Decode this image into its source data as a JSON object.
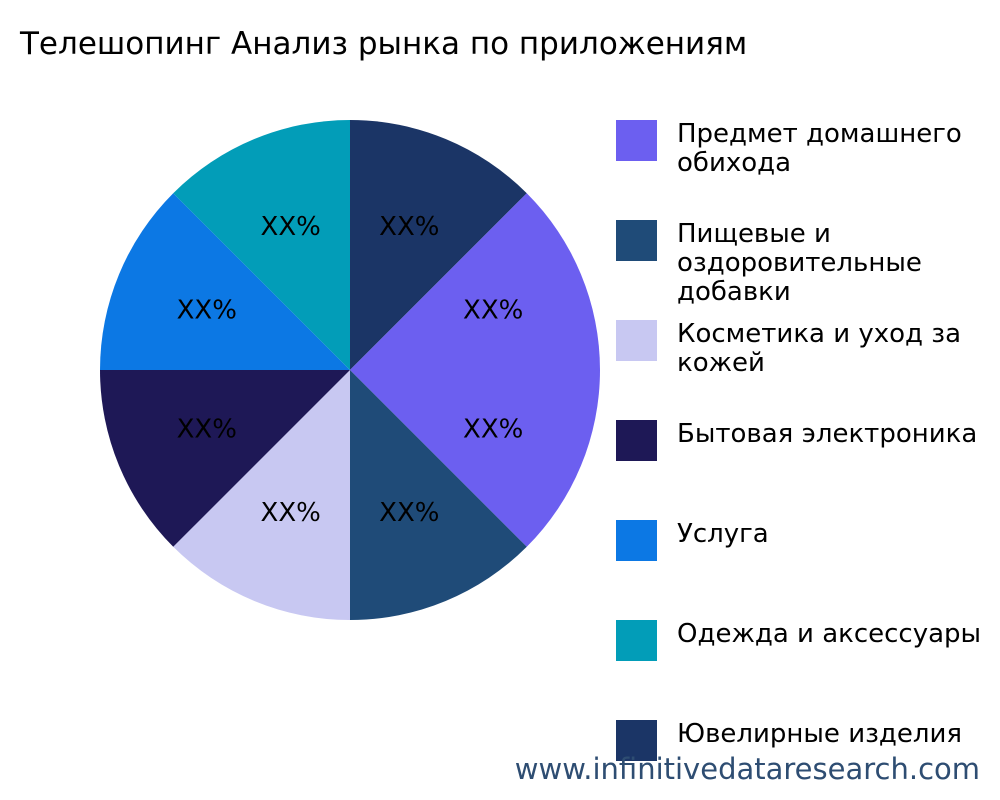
{
  "chart_data": {
    "type": "pie",
    "title": "Телешопинг Анализ рынка по приложениям",
    "slices": [
      {
        "label": "Предмет домашнего обихода",
        "value": 25,
        "display": "XX%",
        "color": "#6c5ff0"
      },
      {
        "label": "Пищевые и оздоровительные добавки",
        "value": 12.5,
        "display": "XX%",
        "color": "#1f4b78"
      },
      {
        "label": "Косметика и уход за кожей",
        "value": 12.5,
        "display": "XX%",
        "color": "#c8c8f2"
      },
      {
        "label": "Бытовая электроника",
        "value": 12.5,
        "display": "XX%",
        "color": "#1e1856"
      },
      {
        "label": "Услуга",
        "value": 12.5,
        "display": "XX%",
        "color": "#0c78e4"
      },
      {
        "label": "Одежда и аксессуары",
        "value": 12.5,
        "display": "XX%",
        "color": "#029db8"
      },
      {
        "label": "Ювелирные изделия",
        "value": 12.5,
        "display": "XX%",
        "color": "#1b3566"
      }
    ],
    "start_slice": 6,
    "direction": "clockwise",
    "legend_position": "right"
  },
  "legend": [
    {
      "text": "Предмет домашнего\nобихода"
    },
    {
      "text": "Пищевые и\nоздоровительные\nдобавки"
    },
    {
      "text": "Косметика и уход за\nкожей"
    },
    {
      "text": "Бытовая электроника"
    },
    {
      "text": "Услуга"
    },
    {
      "text": "Одежда и аксессуары"
    },
    {
      "text": "Ювелирные изделия"
    }
  ],
  "watermark": "www.infinitivedataresearch.com"
}
